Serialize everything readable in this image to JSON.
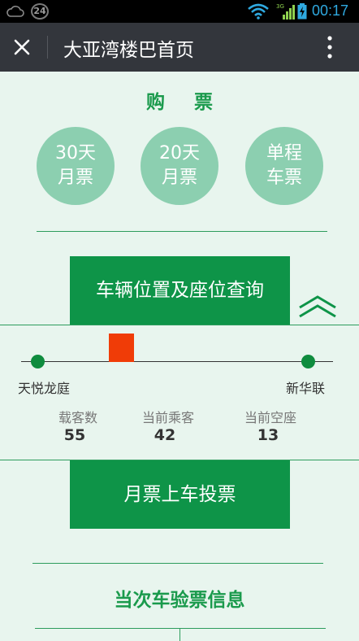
{
  "status_bar": {
    "notification_count": "24",
    "network_type": "3G",
    "time": "00:17",
    "accent_color": "#2fa9e0"
  },
  "title_bar": {
    "title": "大亚湾楼巴首页"
  },
  "purchase": {
    "heading": "购 票",
    "tickets": [
      {
        "line1": "30天",
        "line2": "月票"
      },
      {
        "line1": "20天",
        "line2": "月票"
      },
      {
        "line1": "单程",
        "line2": "车票"
      }
    ]
  },
  "query_button": {
    "label": "车辆位置及座位查询"
  },
  "route": {
    "start_stop": "天悦龙庭",
    "end_stop": "新华联",
    "bus_progress": 0.31
  },
  "stats": [
    {
      "label": "载客数",
      "value": "55"
    },
    {
      "label": "当前乘客",
      "value": "42"
    },
    {
      "label": "当前空座",
      "value": "13"
    }
  ],
  "vote_button": {
    "label": "月票上车投票"
  },
  "verify": {
    "heading": "当次车验票信息"
  },
  "colors": {
    "primary_green": "#0e9448",
    "light_green": "#8ccfb0",
    "background": "#e8f5ee",
    "bus_marker": "#f03c07"
  }
}
